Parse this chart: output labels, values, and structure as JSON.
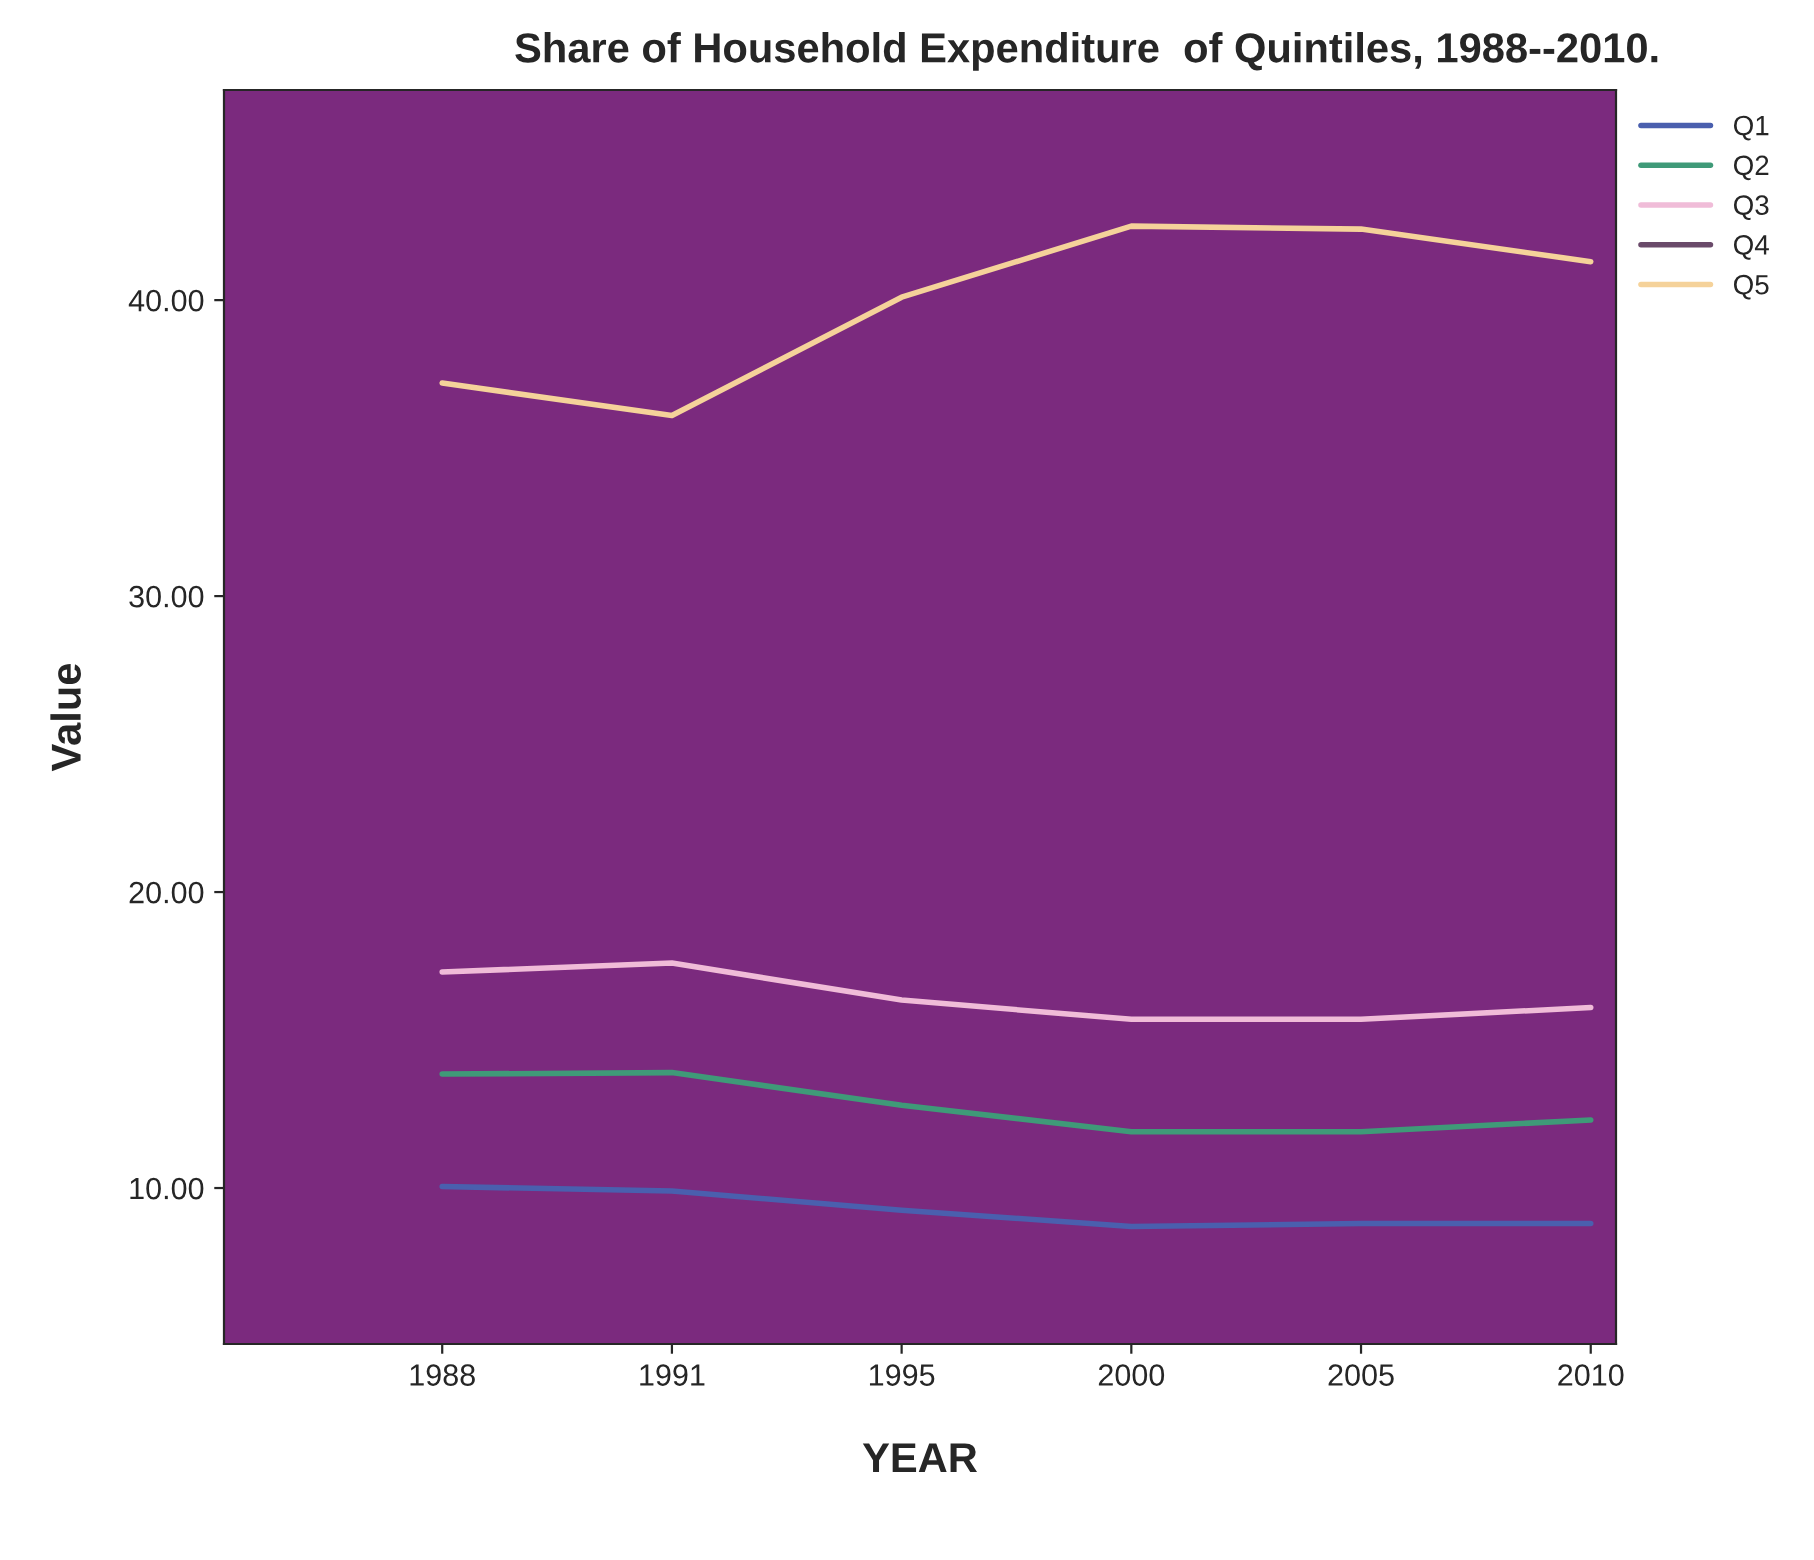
{
  "chart_data": {
    "type": "line",
    "title": "Share of Household Expenditure  of Quintiles, 1988--2010.",
    "xlabel": "YEAR",
    "ylabel": "Value",
    "categories": [
      "1988",
      "1991",
      "1995",
      "2000",
      "2005",
      "2010"
    ],
    "series": [
      {
        "name": "Q1",
        "color": "#4a5fae",
        "values": [
          10.05,
          9.9,
          9.25,
          8.7,
          8.8,
          8.8
        ]
      },
      {
        "name": "Q2",
        "color": "#3f9a78",
        "values": [
          13.85,
          13.9,
          12.8,
          11.9,
          11.9,
          12.3
        ]
      },
      {
        "name": "Q3",
        "color": "#f0bcd8",
        "values": [
          17.3,
          17.6,
          16.35,
          15.7,
          15.7,
          16.1
        ]
      },
      {
        "name": "Q4",
        "color": "#6a4a6a",
        "values": [
          null,
          null,
          null,
          null,
          null,
          null
        ]
      },
      {
        "name": "Q5",
        "color": "#f5d29a",
        "values": [
          37.2,
          36.1,
          40.1,
          42.5,
          42.4,
          41.3
        ]
      }
    ],
    "ylim": [
      4.73,
      47.1
    ],
    "yticks": [
      {
        "value": 10,
        "label": "10.00"
      },
      {
        "value": 20,
        "label": "20.00"
      },
      {
        "value": 30,
        "label": "30.00"
      },
      {
        "value": 40,
        "label": "40.00"
      }
    ],
    "grid": false,
    "legend": "top right",
    "marker": "none",
    "line_style": "solid"
  }
}
